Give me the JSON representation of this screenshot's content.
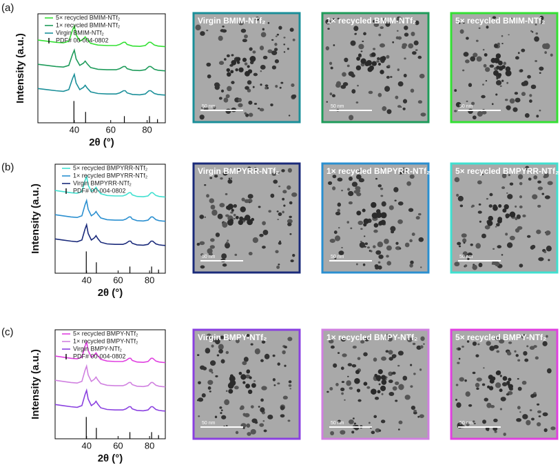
{
  "chart_data": [
    {
      "type": "line",
      "panel_label": "(a)",
      "x_label": "2θ (°)",
      "y_label": "Intensity (a.u.)",
      "xlim": [
        20,
        90
      ],
      "ylim": [
        0,
        9
      ],
      "xticks": [
        40,
        60,
        80
      ],
      "x": [
        20,
        25,
        30,
        34,
        37,
        39,
        40,
        41,
        43,
        45,
        46,
        47,
        49,
        53,
        58,
        63,
        65,
        67,
        68,
        69,
        72,
        76,
        79,
        81,
        82,
        84,
        86,
        88,
        90
      ],
      "series": [
        {
          "name": "5× recycled BMIM-NTf₂",
          "color": "#33e033",
          "values": [
            6.83,
            6.74,
            6.65,
            6.6,
            6.74,
            7.64,
            8.0,
            7.28,
            6.74,
            6.92,
            7.1,
            6.88,
            6.56,
            6.42,
            6.38,
            6.38,
            6.47,
            6.65,
            6.65,
            6.47,
            6.34,
            6.31,
            6.38,
            6.65,
            6.65,
            6.42,
            6.34,
            6.31,
            6.29
          ]
        },
        {
          "name": "1× recycled BMIM-NTf₂",
          "color": "#1e9b5a",
          "values": [
            4.83,
            4.74,
            4.65,
            4.6,
            4.74,
            5.64,
            6.0,
            5.28,
            4.74,
            4.92,
            5.1,
            4.88,
            4.56,
            4.42,
            4.38,
            4.38,
            4.47,
            4.65,
            4.65,
            4.47,
            4.34,
            4.31,
            4.38,
            4.65,
            4.65,
            4.42,
            4.34,
            4.31,
            4.29
          ]
        },
        {
          "name": "Virgin BMIM-NTf₂",
          "color": "#1a8f99",
          "values": [
            2.83,
            2.74,
            2.65,
            2.6,
            2.74,
            3.64,
            4.0,
            3.28,
            2.74,
            2.92,
            3.1,
            2.88,
            2.56,
            2.42,
            2.38,
            2.38,
            2.47,
            2.65,
            2.65,
            2.47,
            2.34,
            2.31,
            2.38,
            2.65,
            2.65,
            2.42,
            2.34,
            2.31,
            2.29
          ]
        }
      ],
      "reference": {
        "name": "PDF# 00-004-0802",
        "color": "#000000",
        "x": [
          39.8,
          46.2,
          67.5,
          81.3,
          85.7
        ],
        "values": [
          1.8,
          0.9,
          0.55,
          0.55,
          0.3
        ]
      },
      "tem_images": [
        {
          "label": "Virgin BMIM-NTf₂",
          "border": "#1a8f99",
          "scale_bar": "50 nm"
        },
        {
          "label": "1× recycled BMIM-NTf₂",
          "border": "#1e9b5a",
          "scale_bar": "50 nm"
        },
        {
          "label": "5× recycled BMIM-NTf₂",
          "border": "#33e033",
          "scale_bar": "50 nm"
        }
      ]
    },
    {
      "type": "line",
      "panel_label": "(b)",
      "x_label": "2θ (°)",
      "y_label": "Intensity (a.u.)",
      "xlim": [
        20,
        90
      ],
      "ylim": [
        0,
        9
      ],
      "xticks": [
        40,
        60,
        80
      ],
      "x": [
        20,
        25,
        30,
        34,
        37,
        39,
        40,
        41,
        43,
        45,
        46,
        47,
        49,
        53,
        58,
        63,
        65,
        67,
        68,
        69,
        72,
        76,
        79,
        81,
        82,
        84,
        86,
        88,
        90
      ],
      "series": [
        {
          "name": "5× recycled BMPYRR-NTf₂",
          "color": "#40e0d0",
          "values": [
            6.83,
            6.74,
            6.65,
            6.6,
            6.74,
            7.64,
            8.0,
            7.28,
            6.74,
            6.92,
            7.1,
            6.88,
            6.56,
            6.42,
            6.38,
            6.38,
            6.47,
            6.65,
            6.65,
            6.47,
            6.34,
            6.31,
            6.38,
            6.65,
            6.65,
            6.42,
            6.34,
            6.31,
            6.29
          ]
        },
        {
          "name": "1× recycled BMPYRR-NTf₂",
          "color": "#2a8fd0",
          "values": [
            4.83,
            4.74,
            4.65,
            4.6,
            4.74,
            5.64,
            6.0,
            5.28,
            4.74,
            4.92,
            5.1,
            4.88,
            4.56,
            4.42,
            4.38,
            4.38,
            4.47,
            4.65,
            4.65,
            4.47,
            4.34,
            4.31,
            4.38,
            4.65,
            4.65,
            4.42,
            4.34,
            4.31,
            4.29
          ]
        },
        {
          "name": "Virgin BMPYRR-NTf₂",
          "color": "#1a2a7a",
          "values": [
            2.83,
            2.74,
            2.65,
            2.6,
            2.74,
            3.64,
            4.0,
            3.28,
            2.74,
            2.92,
            3.1,
            2.88,
            2.56,
            2.42,
            2.38,
            2.38,
            2.47,
            2.65,
            2.65,
            2.47,
            2.34,
            2.31,
            2.38,
            2.65,
            2.65,
            2.42,
            2.34,
            2.31,
            2.29
          ]
        }
      ],
      "reference": {
        "name": "PDF# 00-004-0802",
        "color": "#000000",
        "x": [
          39.8,
          46.2,
          67.5,
          81.3,
          85.7
        ],
        "values": [
          1.8,
          0.9,
          0.55,
          0.55,
          0.3
        ]
      },
      "tem_images": [
        {
          "label": "Virgin BMPYRR-NTf₂",
          "border": "#1a2a7a",
          "scale_bar": "50 nm"
        },
        {
          "label": "1× recycled BMPYRR-NTf₂",
          "border": "#2a8fd0",
          "scale_bar": "50 nm"
        },
        {
          "label": "5× recycled BMPYRR-NTf₂",
          "border": "#40e0d0",
          "scale_bar": "50 nm"
        }
      ]
    },
    {
      "type": "line",
      "panel_label": "(c)",
      "x_label": "2θ (°)",
      "y_label": "Intensity (a.u.)",
      "xlim": [
        20,
        90
      ],
      "ylim": [
        0,
        9
      ],
      "xticks": [
        40,
        60,
        80
      ],
      "x": [
        20,
        25,
        30,
        34,
        37,
        39,
        40,
        41,
        43,
        45,
        46,
        47,
        49,
        53,
        58,
        63,
        65,
        67,
        68,
        69,
        72,
        76,
        79,
        81,
        82,
        84,
        86,
        88,
        90
      ],
      "series": [
        {
          "name": "5× recycled BMPY-NTf₂",
          "color": "#e040e0",
          "values": [
            6.83,
            6.74,
            6.65,
            6.6,
            6.74,
            7.64,
            8.0,
            7.28,
            6.74,
            6.92,
            7.1,
            6.88,
            6.56,
            6.42,
            6.38,
            6.38,
            6.47,
            6.65,
            6.65,
            6.47,
            6.34,
            6.31,
            6.38,
            6.65,
            6.65,
            6.42,
            6.34,
            6.31,
            6.29
          ]
        },
        {
          "name": "1× recycled BMPY-NTf₂",
          "color": "#d080e0",
          "values": [
            4.83,
            4.74,
            4.65,
            4.6,
            4.74,
            5.64,
            6.0,
            5.28,
            4.74,
            4.92,
            5.1,
            4.88,
            4.56,
            4.42,
            4.38,
            4.38,
            4.47,
            4.65,
            4.65,
            4.47,
            4.34,
            4.31,
            4.38,
            4.65,
            4.65,
            4.42,
            4.34,
            4.31,
            4.29
          ]
        },
        {
          "name": "Virgin BMPY-NTf₂",
          "color": "#8a40e0",
          "values": [
            2.83,
            2.74,
            2.65,
            2.6,
            2.74,
            3.64,
            4.0,
            3.28,
            2.74,
            2.92,
            3.1,
            2.88,
            2.56,
            2.42,
            2.38,
            2.38,
            2.47,
            2.65,
            2.65,
            2.47,
            2.34,
            2.31,
            2.38,
            2.65,
            2.65,
            2.42,
            2.34,
            2.31,
            2.29
          ]
        }
      ],
      "reference": {
        "name": "PDF# 00-004-0802",
        "color": "#000000",
        "x": [
          39.8,
          46.2,
          67.5,
          81.3,
          85.7
        ],
        "values": [
          1.8,
          0.9,
          0.55,
          0.55,
          0.3
        ]
      },
      "tem_images": [
        {
          "label": "Virgin BMPY-NTf₂",
          "border": "#8a40e0",
          "scale_bar": "50 nm"
        },
        {
          "label": "1× recycled BMPY-NTf₂",
          "border": "#d080e0",
          "scale_bar": "50 nm"
        },
        {
          "label": "5× recycled BMPY-NTf₂",
          "border": "#e040e0",
          "scale_bar": "50 nm"
        }
      ]
    }
  ]
}
